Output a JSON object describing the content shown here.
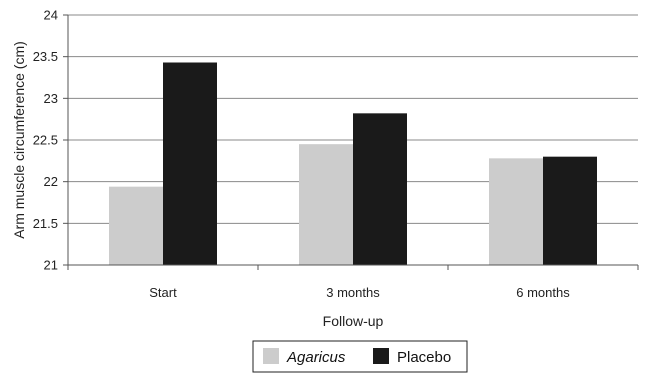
{
  "chart_data": {
    "type": "bar",
    "categories": [
      "Start",
      "3 months",
      "6 months"
    ],
    "series": [
      {
        "name": "Agaricus",
        "values": [
          21.94,
          22.45,
          22.28
        ],
        "color": "#cccccc"
      },
      {
        "name": "Placebo",
        "values": [
          23.43,
          22.82,
          22.3
        ],
        "color": "#1a1a1a"
      }
    ],
    "xlabel": "Follow-up",
    "ylabel": "Arm muscle circumference (cm)",
    "ylim": [
      21,
      24
    ],
    "yticks": [
      "21",
      "21.5",
      "22",
      "22.5",
      "23",
      "23.5",
      "24"
    ],
    "grid": true,
    "legend_position": "bottom"
  }
}
